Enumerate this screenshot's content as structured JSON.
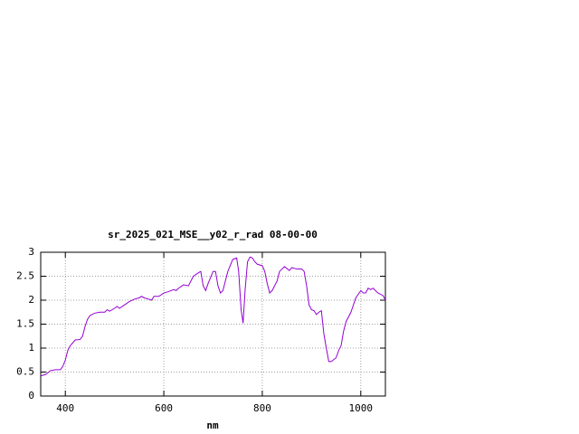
{
  "chart_data": {
    "type": "line",
    "title": "sr_2025_021_MSE__y02_r_rad 08-00-00",
    "x_label": "nm",
    "xlim": [
      350,
      1050
    ],
    "xticks": [
      400,
      600,
      800,
      1000
    ],
    "ylim": [
      0,
      3
    ],
    "yticks": [
      0,
      0.5,
      1,
      1.5,
      2,
      2.5,
      3
    ],
    "grid": true,
    "series": [
      {
        "color": "#9400d3",
        "x": [
          350,
          360,
          370,
          380,
          390,
          395,
          400,
          405,
          410,
          420,
          430,
          435,
          440,
          445,
          450,
          460,
          470,
          480,
          485,
          490,
          500,
          505,
          510,
          520,
          530,
          540,
          550,
          555,
          560,
          570,
          575,
          580,
          590,
          600,
          610,
          620,
          625,
          630,
          640,
          650,
          660,
          670,
          675,
          680,
          685,
          690,
          700,
          705,
          710,
          715,
          720,
          730,
          740,
          748,
          752,
          757,
          761,
          765,
          770,
          775,
          780,
          785,
          790,
          800,
          805,
          810,
          815,
          820,
          830,
          835,
          845,
          855,
          860,
          870,
          880,
          885,
          890,
          895,
          900,
          905,
          910,
          915,
          920,
          925,
          930,
          935,
          940,
          950,
          955,
          960,
          965,
          970,
          980,
          990,
          1000,
          1005,
          1010,
          1015,
          1020,
          1025,
          1035,
          1045,
          1050
        ],
        "values": [
          0.42,
          0.45,
          0.53,
          0.55,
          0.55,
          0.62,
          0.75,
          0.95,
          1.05,
          1.17,
          1.18,
          1.25,
          1.45,
          1.6,
          1.68,
          1.73,
          1.75,
          1.75,
          1.8,
          1.77,
          1.83,
          1.87,
          1.83,
          1.9,
          1.97,
          2.02,
          2.05,
          2.08,
          2.05,
          2.02,
          2.0,
          2.08,
          2.08,
          2.15,
          2.18,
          2.22,
          2.2,
          2.25,
          2.32,
          2.3,
          2.5,
          2.57,
          2.6,
          2.3,
          2.2,
          2.35,
          2.6,
          2.6,
          2.3,
          2.15,
          2.2,
          2.6,
          2.85,
          2.88,
          2.6,
          1.8,
          1.52,
          2.2,
          2.8,
          2.9,
          2.88,
          2.8,
          2.75,
          2.72,
          2.6,
          2.35,
          2.15,
          2.2,
          2.4,
          2.6,
          2.7,
          2.62,
          2.68,
          2.65,
          2.65,
          2.6,
          2.3,
          1.9,
          1.8,
          1.78,
          1.7,
          1.75,
          1.78,
          1.3,
          1.0,
          0.72,
          0.72,
          0.8,
          0.95,
          1.05,
          1.35,
          1.55,
          1.75,
          2.05,
          2.2,
          2.15,
          2.15,
          2.25,
          2.22,
          2.25,
          2.15,
          2.1,
          2.0
        ]
      }
    ]
  }
}
